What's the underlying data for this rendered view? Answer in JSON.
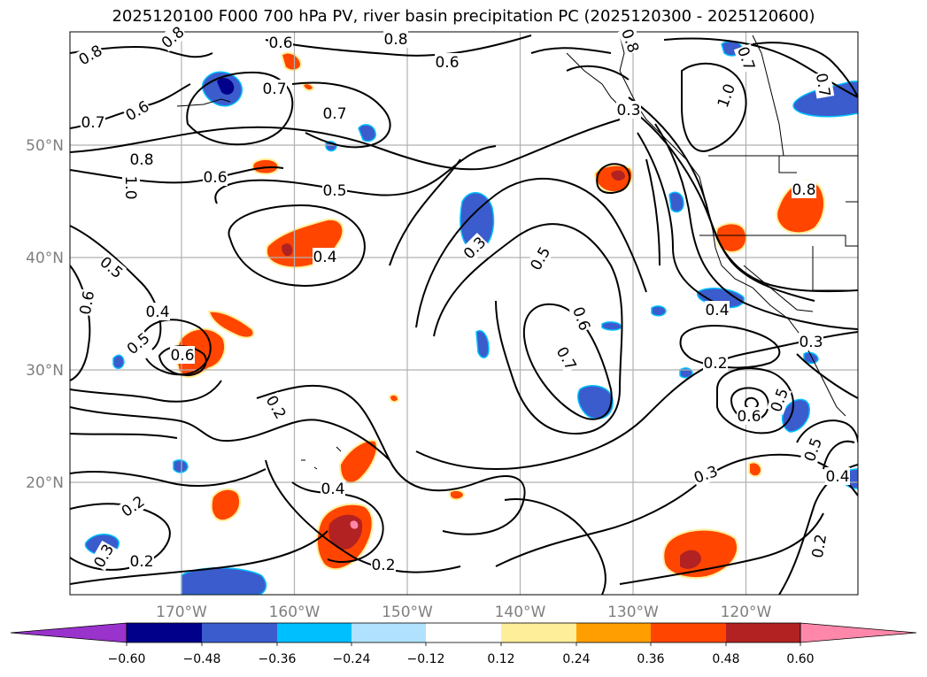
{
  "title": "2025120100 F000 700 hPa PV, river basin precipitation PC (2025120300 - 2025120600)",
  "map": {
    "lon_ticks": [
      {
        "lon": -170,
        "label": "170°W"
      },
      {
        "lon": -160,
        "label": "160°W"
      },
      {
        "lon": -150,
        "label": "150°W"
      },
      {
        "lon": -140,
        "label": "140°W"
      },
      {
        "lon": -130,
        "label": "130°W"
      },
      {
        "lon": -120,
        "label": "120°W"
      }
    ],
    "lat_ticks": [
      {
        "lat": 20,
        "label": "20°N"
      },
      {
        "lat": 30,
        "label": "30°N"
      },
      {
        "lat": 40,
        "label": "40°N"
      },
      {
        "lat": 50,
        "label": "50°N"
      }
    ],
    "contour_labels": [
      "0.8",
      "0.7",
      "0.6",
      "1.0",
      "0.8",
      "0.6",
      "0.7",
      "0.8",
      "0.7",
      "0.6",
      "0.5",
      "1.0",
      "0.8",
      "0.7",
      "0.6",
      "0.5",
      "0.6",
      "0.4",
      "0.5",
      "0.4",
      "0.3",
      "0.5",
      "0.6",
      "0.7",
      "0.6",
      "0.7",
      "0.8",
      "0.4",
      "0.3",
      "0.2",
      "0.5",
      "0.6",
      "0.2",
      "0.2",
      "0.4",
      "0.3",
      "0.2",
      "0.3",
      "0.2",
      "0.2",
      "0.4",
      "0.5",
      "0.3",
      "0.8"
    ]
  },
  "colorbar": {
    "tick_labels": [
      "−0.60",
      "−0.48",
      "−0.36",
      "−0.24",
      "−0.12",
      "0.12",
      "0.24",
      "0.36",
      "0.48",
      "0.60"
    ],
    "colors": [
      "#9933cc",
      "#00008b",
      "#3a5ccc",
      "#00bfff",
      "#b0e2ff",
      "#ffffff",
      "#ffee99",
      "#ff9e00",
      "#ff4500",
      "#b22222",
      "#ff88aa"
    ]
  }
}
